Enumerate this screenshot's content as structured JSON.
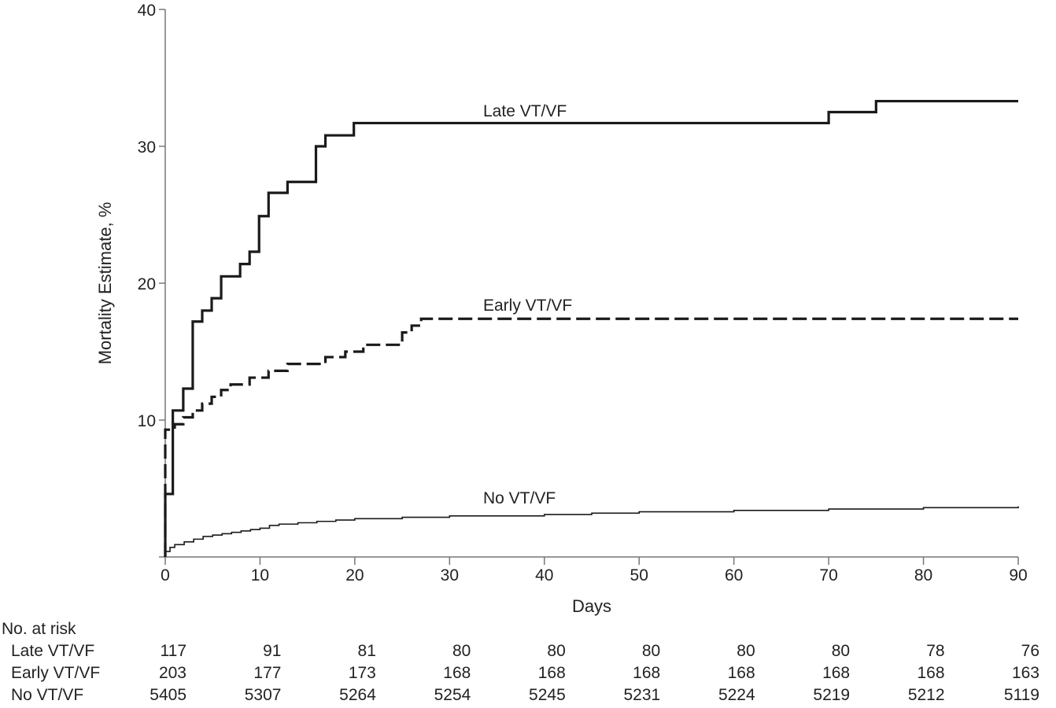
{
  "chart_data": {
    "type": "line",
    "step": true,
    "xlabel": "Days",
    "ylabel": "Mortality Estimate, %",
    "xlim": [
      0,
      90
    ],
    "ylim": [
      0,
      40
    ],
    "xticks": [
      0,
      10,
      20,
      30,
      40,
      50,
      60,
      70,
      80,
      90
    ],
    "yticks": [
      10,
      20,
      30,
      40
    ],
    "grid": false,
    "series": [
      {
        "name": "Late VT/VF",
        "style": "solid-thick",
        "points": [
          [
            0,
            4.6
          ],
          [
            0.8,
            10.7
          ],
          [
            1.9,
            12.3
          ],
          [
            2.9,
            17.2
          ],
          [
            3.9,
            18.0
          ],
          [
            4.9,
            18.9
          ],
          [
            5.9,
            20.5
          ],
          [
            7.9,
            21.4
          ],
          [
            8.9,
            22.3
          ],
          [
            9.9,
            24.9
          ],
          [
            10.9,
            26.6
          ],
          [
            12.9,
            27.4
          ],
          [
            15.9,
            30.0
          ],
          [
            16.9,
            30.8
          ],
          [
            19.9,
            31.7
          ],
          [
            70,
            32.5
          ],
          [
            75,
            33.3
          ],
          [
            90,
            33.3
          ]
        ]
      },
      {
        "name": "Early VT/VF",
        "style": "dashed",
        "points": [
          [
            0,
            9.3
          ],
          [
            1,
            9.7
          ],
          [
            1.9,
            10.2
          ],
          [
            2.9,
            10.7
          ],
          [
            3.9,
            11.2
          ],
          [
            4.9,
            11.7
          ],
          [
            5.9,
            12.2
          ],
          [
            6.9,
            12.6
          ],
          [
            8.9,
            13.1
          ],
          [
            10.9,
            13.6
          ],
          [
            12.9,
            14.1
          ],
          [
            16.9,
            14.6
          ],
          [
            19,
            15.0
          ],
          [
            20.9,
            15.5
          ],
          [
            25,
            16.4
          ],
          [
            26,
            16.9
          ],
          [
            27,
            17.4
          ],
          [
            90,
            17.4
          ]
        ]
      },
      {
        "name": "No VT/VF",
        "style": "solid-thin",
        "points": [
          [
            0,
            0.4
          ],
          [
            0.5,
            0.7
          ],
          [
            1,
            0.9
          ],
          [
            2,
            1.1
          ],
          [
            3,
            1.3
          ],
          [
            4,
            1.5
          ],
          [
            5,
            1.6
          ],
          [
            6,
            1.7
          ],
          [
            7,
            1.8
          ],
          [
            8,
            1.9
          ],
          [
            9,
            2.0
          ],
          [
            10,
            2.1
          ],
          [
            11,
            2.3
          ],
          [
            12,
            2.4
          ],
          [
            14,
            2.5
          ],
          [
            16,
            2.6
          ],
          [
            18,
            2.7
          ],
          [
            20,
            2.8
          ],
          [
            25,
            2.9
          ],
          [
            30,
            3.0
          ],
          [
            40,
            3.1
          ],
          [
            45,
            3.2
          ],
          [
            50,
            3.3
          ],
          [
            60,
            3.4
          ],
          [
            70,
            3.5
          ],
          [
            80,
            3.6
          ],
          [
            90,
            3.7
          ]
        ]
      }
    ],
    "annotations": [
      "Late VT/VF",
      "Early VT/VF",
      "No VT/VF"
    ],
    "at_risk": {
      "title": "No. at risk",
      "rows": [
        {
          "label": "Late VT/VF",
          "values": [
            "117",
            "91",
            "81",
            "80",
            "80",
            "80",
            "80",
            "80",
            "78",
            "76"
          ]
        },
        {
          "label": "Early VT/VF",
          "values": [
            "203",
            "177",
            "173",
            "168",
            "168",
            "168",
            "168",
            "168",
            "168",
            "163"
          ]
        },
        {
          "label": "No VT/VF",
          "values": [
            "5405",
            "5307",
            "5264",
            "5254",
            "5245",
            "5231",
            "5224",
            "5219",
            "5212",
            "5119"
          ]
        }
      ]
    }
  }
}
